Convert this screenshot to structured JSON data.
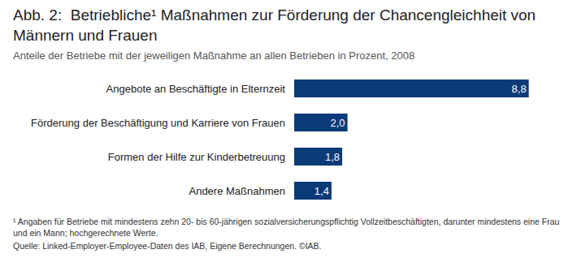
{
  "chart_data": {
    "type": "bar",
    "title": "Abb. 2:  Betriebliche¹ Maßnahmen zur Förderung der Chancengleichheit von Männern und Frauen",
    "subtitle": "Anteile der Betriebe mit der jeweiligen Maßnahme an allen Betrieben in Prozent, 2008",
    "footnote": "¹ Angaben für Betriebe mit mindestens zehn 20- bis 60-jährigen sozialversicherungspflichtig Vollzeitbeschäftigten, darunter mindestens eine Frau und ein Mann; hochgerechnete Werte.",
    "source": "Quelle: Linked-Employer-Employee-Daten des IAB, Eigene Berechnungen. ©IAB.",
    "categories": [
      "Angebote an Beschäftigte in Elternzeit",
      "Förderung der Beschäftigung und Karriere von Frauen",
      "Formen der Hilfe zur Kinderbetreuung",
      "Andere Maßnahmen"
    ],
    "values": [
      8.8,
      2.0,
      1.8,
      1.4
    ],
    "value_labels": [
      "8,8",
      "2,0",
      "1,8",
      "1,4"
    ],
    "color": "#0b3a78",
    "orientation": "horizontal",
    "data_labels": true,
    "tick_labels": "y",
    "xlim": [
      0,
      10
    ]
  }
}
